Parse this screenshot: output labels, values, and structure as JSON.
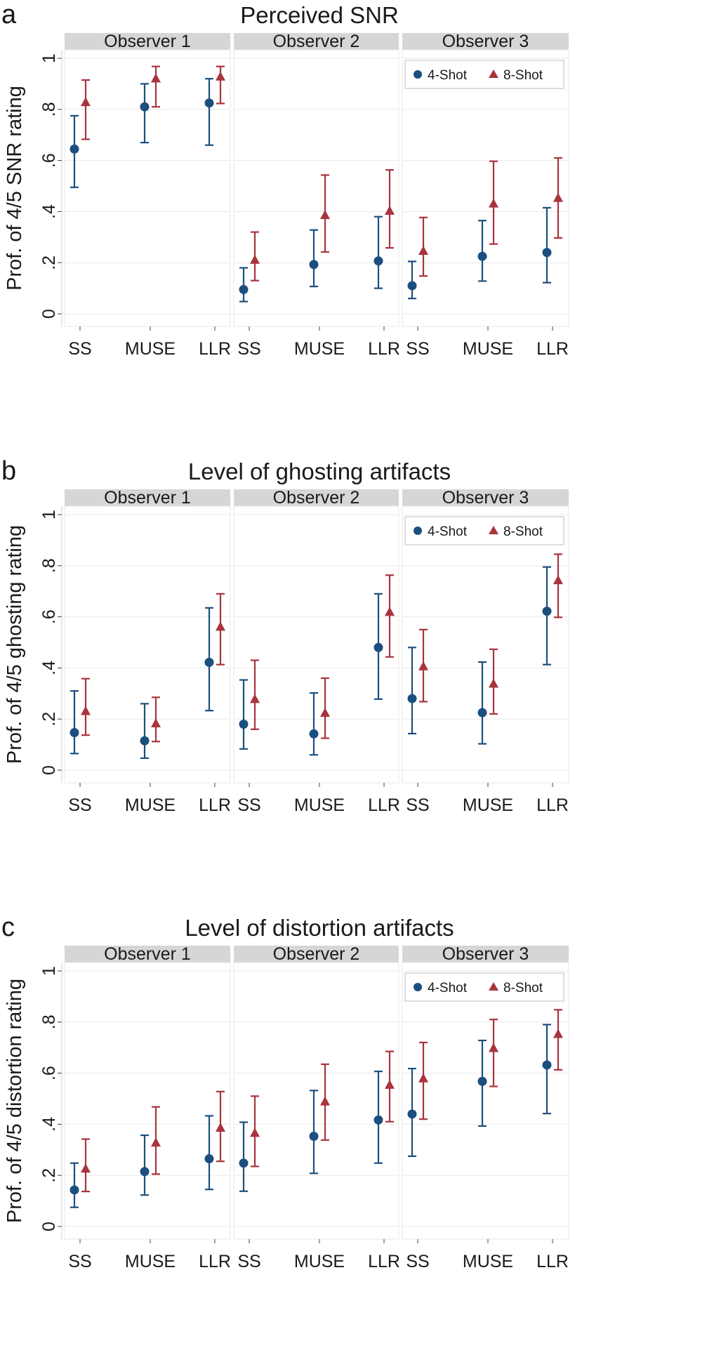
{
  "chart_data": [
    {
      "type": "scatter",
      "letter": "a",
      "title": "Perceived SNR",
      "ylabel": "Prof. of 4/5 SNR rating",
      "ylim": [
        0,
        1
      ],
      "yticks": [
        {
          "value": 0,
          "label": "0"
        },
        {
          "value": 0.2,
          "label": ".2"
        },
        {
          "value": 0.4,
          "label": ".4"
        },
        {
          "value": 0.6,
          "label": ".6"
        },
        {
          "value": 0.8,
          "label": ".8"
        },
        {
          "value": 1,
          "label": "1"
        }
      ],
      "grid": true,
      "categories": [
        "SS",
        "MUSE",
        "LLR"
      ],
      "panels": [
        "Observer 1",
        "Observer 2",
        "Observer 3"
      ],
      "legend_position": "top-right of Observer 3 panel",
      "series": [
        {
          "name": "4-Shot",
          "marker": "circle",
          "color": "#1b4f7e",
          "values": [
            [
              {
                "y": 0.645,
                "lo": 0.495,
                "hi": 0.775
              },
              {
                "y": 0.81,
                "lo": 0.67,
                "hi": 0.9
              },
              {
                "y": 0.825,
                "lo": 0.66,
                "hi": 0.92
              }
            ],
            [
              {
                "y": 0.095,
                "lo": 0.048,
                "hi": 0.18
              },
              {
                "y": 0.193,
                "lo": 0.107,
                "hi": 0.328
              },
              {
                "y": 0.207,
                "lo": 0.1,
                "hi": 0.38
              }
            ],
            [
              {
                "y": 0.11,
                "lo": 0.06,
                "hi": 0.205
              },
              {
                "y": 0.225,
                "lo": 0.128,
                "hi": 0.365
              },
              {
                "y": 0.24,
                "lo": 0.122,
                "hi": 0.415
              }
            ]
          ]
        },
        {
          "name": "8-Shot",
          "marker": "triangle",
          "color": "#a8343d",
          "values": [
            [
              {
                "y": 0.827,
                "lo": 0.683,
                "hi": 0.915
              },
              {
                "y": 0.92,
                "lo": 0.81,
                "hi": 0.968
              },
              {
                "y": 0.927,
                "lo": 0.823,
                "hi": 0.968
              }
            ],
            [
              {
                "y": 0.21,
                "lo": 0.13,
                "hi": 0.32
              },
              {
                "y": 0.385,
                "lo": 0.242,
                "hi": 0.543
              },
              {
                "y": 0.402,
                "lo": 0.258,
                "hi": 0.563
              }
            ],
            [
              {
                "y": 0.245,
                "lo": 0.148,
                "hi": 0.377
              },
              {
                "y": 0.43,
                "lo": 0.273,
                "hi": 0.597
              },
              {
                "y": 0.452,
                "lo": 0.297,
                "hi": 0.61
              }
            ]
          ]
        }
      ]
    },
    {
      "type": "scatter",
      "letter": "b",
      "title": "Level of ghosting artifacts",
      "ylabel": "Prof. of 4/5 ghosting rating",
      "ylim": [
        0,
        1
      ],
      "yticks": [
        {
          "value": 0,
          "label": "0"
        },
        {
          "value": 0.2,
          "label": ".2"
        },
        {
          "value": 0.4,
          "label": ".4"
        },
        {
          "value": 0.6,
          "label": ".6"
        },
        {
          "value": 0.8,
          "label": ".8"
        },
        {
          "value": 1,
          "label": "1"
        }
      ],
      "grid": true,
      "categories": [
        "SS",
        "MUSE",
        "LLR"
      ],
      "panels": [
        "Observer 1",
        "Observer 2",
        "Observer 3"
      ],
      "legend_position": "top-right of Observer 3 panel",
      "series": [
        {
          "name": "4-Shot",
          "marker": "circle",
          "color": "#1b4f7e",
          "values": [
            [
              {
                "y": 0.147,
                "lo": 0.065,
                "hi": 0.31
              },
              {
                "y": 0.115,
                "lo": 0.047,
                "hi": 0.26
              },
              {
                "y": 0.422,
                "lo": 0.233,
                "hi": 0.635
              }
            ],
            [
              {
                "y": 0.18,
                "lo": 0.083,
                "hi": 0.353
              },
              {
                "y": 0.142,
                "lo": 0.06,
                "hi": 0.302
              },
              {
                "y": 0.48,
                "lo": 0.278,
                "hi": 0.69
              }
            ],
            [
              {
                "y": 0.28,
                "lo": 0.143,
                "hi": 0.48
              },
              {
                "y": 0.225,
                "lo": 0.103,
                "hi": 0.423
              },
              {
                "y": 0.622,
                "lo": 0.413,
                "hi": 0.795
              }
            ]
          ]
        },
        {
          "name": "8-Shot",
          "marker": "triangle",
          "color": "#a8343d",
          "values": [
            [
              {
                "y": 0.23,
                "lo": 0.137,
                "hi": 0.358
              },
              {
                "y": 0.182,
                "lo": 0.112,
                "hi": 0.285
              },
              {
                "y": 0.56,
                "lo": 0.413,
                "hi": 0.69
              }
            ],
            [
              {
                "y": 0.277,
                "lo": 0.16,
                "hi": 0.43
              },
              {
                "y": 0.223,
                "lo": 0.125,
                "hi": 0.36
              },
              {
                "y": 0.618,
                "lo": 0.443,
                "hi": 0.763
              }
            ],
            [
              {
                "y": 0.405,
                "lo": 0.268,
                "hi": 0.55
              },
              {
                "y": 0.337,
                "lo": 0.22,
                "hi": 0.473
              },
              {
                "y": 0.742,
                "lo": 0.598,
                "hi": 0.845
              }
            ]
          ]
        }
      ]
    },
    {
      "type": "scatter",
      "letter": "c",
      "title": "Level of distortion artifacts",
      "ylabel": "Prof. of 4/5 distortion rating",
      "ylim": [
        0,
        1
      ],
      "yticks": [
        {
          "value": 0,
          "label": "0"
        },
        {
          "value": 0.2,
          "label": ".2"
        },
        {
          "value": 0.4,
          "label": ".4"
        },
        {
          "value": 0.6,
          "label": ".6"
        },
        {
          "value": 0.8,
          "label": ".8"
        },
        {
          "value": 1,
          "label": "1"
        }
      ],
      "grid": true,
      "categories": [
        "SS",
        "MUSE",
        "LLR"
      ],
      "panels": [
        "Observer 1",
        "Observer 2",
        "Observer 3"
      ],
      "legend_position": "top-right of Observer 3 panel",
      "series": [
        {
          "name": "4-Shot",
          "marker": "circle",
          "color": "#1b4f7e",
          "values": [
            [
              {
                "y": 0.143,
                "lo": 0.075,
                "hi": 0.248
              },
              {
                "y": 0.215,
                "lo": 0.123,
                "hi": 0.357
              },
              {
                "y": 0.265,
                "lo": 0.145,
                "hi": 0.433
              }
            ],
            [
              {
                "y": 0.248,
                "lo": 0.138,
                "hi": 0.408
              },
              {
                "y": 0.353,
                "lo": 0.208,
                "hi": 0.532
              },
              {
                "y": 0.417,
                "lo": 0.248,
                "hi": 0.607
              }
            ],
            [
              {
                "y": 0.44,
                "lo": 0.275,
                "hi": 0.618
              },
              {
                "y": 0.568,
                "lo": 0.393,
                "hi": 0.728
              },
              {
                "y": 0.632,
                "lo": 0.442,
                "hi": 0.79
              }
            ]
          ]
        },
        {
          "name": "8-Shot",
          "marker": "triangle",
          "color": "#a8343d",
          "values": [
            [
              {
                "y": 0.225,
                "lo": 0.137,
                "hi": 0.342
              },
              {
                "y": 0.327,
                "lo": 0.205,
                "hi": 0.468
              },
              {
                "y": 0.385,
                "lo": 0.255,
                "hi": 0.528
              }
            ],
            [
              {
                "y": 0.365,
                "lo": 0.235,
                "hi": 0.51
              },
              {
                "y": 0.488,
                "lo": 0.338,
                "hi": 0.635
              },
              {
                "y": 0.553,
                "lo": 0.41,
                "hi": 0.685
              }
            ],
            [
              {
                "y": 0.578,
                "lo": 0.42,
                "hi": 0.72
              },
              {
                "y": 0.697,
                "lo": 0.548,
                "hi": 0.81
              },
              {
                "y": 0.752,
                "lo": 0.613,
                "hi": 0.848
              }
            ]
          ]
        }
      ]
    }
  ]
}
